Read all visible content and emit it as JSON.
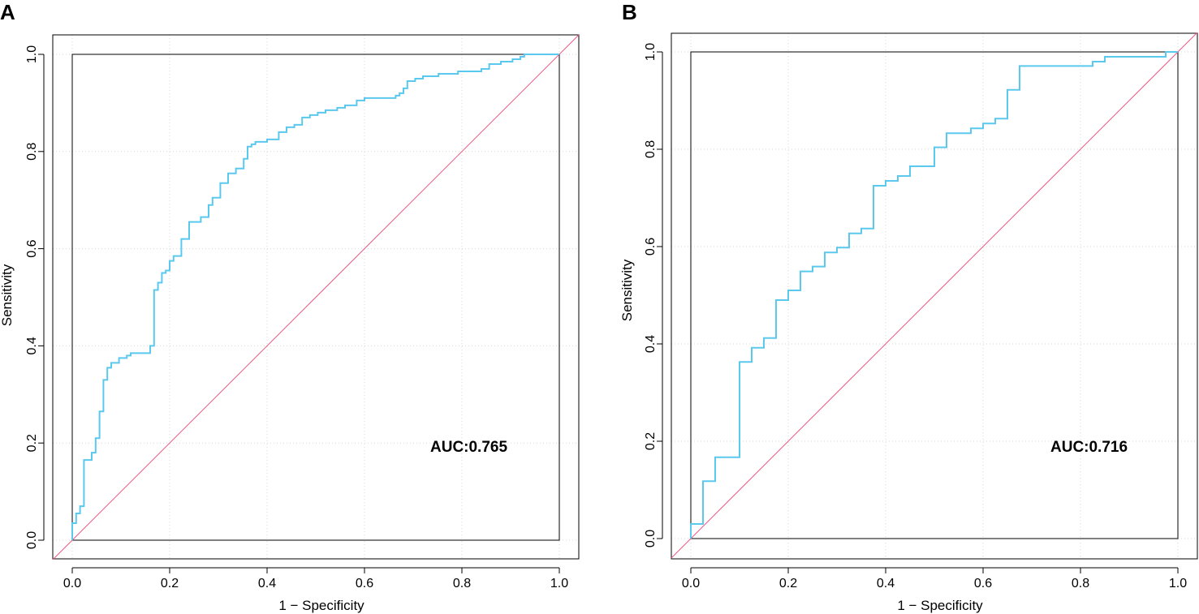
{
  "chart_data": [
    {
      "panel_label": "A",
      "type": "line",
      "xlabel": "1 − Specificity",
      "ylabel": "Sensitivity",
      "xlim": [
        0,
        1
      ],
      "ylim": [
        0,
        1
      ],
      "xticks": [
        "0.0",
        "0.2",
        "0.4",
        "0.6",
        "0.8",
        "1.0"
      ],
      "yticks": [
        "0.0",
        "0.2",
        "0.4",
        "0.6",
        "0.8",
        "1.0"
      ],
      "annotation": "AUC:0.765",
      "colors": {
        "roc": "#5bc8ee",
        "reference": "#ee5a83",
        "frame": "#000000"
      },
      "series": [
        {
          "name": "ROC",
          "points": [
            [
              0,
              0
            ],
            [
              0,
              0.035
            ],
            [
              0.008,
              0.035
            ],
            [
              0.008,
              0.055
            ],
            [
              0.016,
              0.055
            ],
            [
              0.016,
              0.07
            ],
            [
              0.024,
              0.07
            ],
            [
              0.024,
              0.165
            ],
            [
              0.04,
              0.165
            ],
            [
              0.04,
              0.18
            ],
            [
              0.048,
              0.18
            ],
            [
              0.048,
              0.21
            ],
            [
              0.056,
              0.21
            ],
            [
              0.056,
              0.265
            ],
            [
              0.064,
              0.265
            ],
            [
              0.064,
              0.33
            ],
            [
              0.072,
              0.33
            ],
            [
              0.072,
              0.355
            ],
            [
              0.08,
              0.355
            ],
            [
              0.08,
              0.365
            ],
            [
              0.096,
              0.365
            ],
            [
              0.096,
              0.375
            ],
            [
              0.112,
              0.375
            ],
            [
              0.112,
              0.38
            ],
            [
              0.12,
              0.38
            ],
            [
              0.12,
              0.385
            ],
            [
              0.16,
              0.385
            ],
            [
              0.16,
              0.4
            ],
            [
              0.168,
              0.4
            ],
            [
              0.168,
              0.515
            ],
            [
              0.176,
              0.515
            ],
            [
              0.176,
              0.53
            ],
            [
              0.184,
              0.53
            ],
            [
              0.184,
              0.55
            ],
            [
              0.192,
              0.55
            ],
            [
              0.192,
              0.555
            ],
            [
              0.2,
              0.555
            ],
            [
              0.2,
              0.575
            ],
            [
              0.208,
              0.575
            ],
            [
              0.208,
              0.585
            ],
            [
              0.224,
              0.585
            ],
            [
              0.224,
              0.62
            ],
            [
              0.24,
              0.62
            ],
            [
              0.24,
              0.655
            ],
            [
              0.264,
              0.655
            ],
            [
              0.264,
              0.665
            ],
            [
              0.28,
              0.665
            ],
            [
              0.28,
              0.69
            ],
            [
              0.288,
              0.69
            ],
            [
              0.288,
              0.705
            ],
            [
              0.304,
              0.705
            ],
            [
              0.304,
              0.735
            ],
            [
              0.32,
              0.735
            ],
            [
              0.32,
              0.755
            ],
            [
              0.336,
              0.755
            ],
            [
              0.336,
              0.765
            ],
            [
              0.352,
              0.765
            ],
            [
              0.352,
              0.785
            ],
            [
              0.36,
              0.785
            ],
            [
              0.36,
              0.81
            ],
            [
              0.368,
              0.81
            ],
            [
              0.368,
              0.815
            ],
            [
              0.376,
              0.815
            ],
            [
              0.376,
              0.82
            ],
            [
              0.4,
              0.82
            ],
            [
              0.4,
              0.825
            ],
            [
              0.424,
              0.825
            ],
            [
              0.424,
              0.84
            ],
            [
              0.44,
              0.84
            ],
            [
              0.44,
              0.85
            ],
            [
              0.456,
              0.85
            ],
            [
              0.456,
              0.855
            ],
            [
              0.472,
              0.855
            ],
            [
              0.472,
              0.87
            ],
            [
              0.488,
              0.87
            ],
            [
              0.488,
              0.875
            ],
            [
              0.504,
              0.875
            ],
            [
              0.504,
              0.88
            ],
            [
              0.52,
              0.88
            ],
            [
              0.52,
              0.885
            ],
            [
              0.544,
              0.885
            ],
            [
              0.544,
              0.89
            ],
            [
              0.56,
              0.89
            ],
            [
              0.56,
              0.895
            ],
            [
              0.584,
              0.895
            ],
            [
              0.584,
              0.905
            ],
            [
              0.6,
              0.905
            ],
            [
              0.6,
              0.91
            ],
            [
              0.664,
              0.91
            ],
            [
              0.664,
              0.915
            ],
            [
              0.672,
              0.915
            ],
            [
              0.672,
              0.92
            ],
            [
              0.68,
              0.92
            ],
            [
              0.68,
              0.93
            ],
            [
              0.688,
              0.93
            ],
            [
              0.688,
              0.945
            ],
            [
              0.704,
              0.945
            ],
            [
              0.704,
              0.95
            ],
            [
              0.72,
              0.95
            ],
            [
              0.72,
              0.955
            ],
            [
              0.752,
              0.955
            ],
            [
              0.752,
              0.96
            ],
            [
              0.792,
              0.96
            ],
            [
              0.792,
              0.965
            ],
            [
              0.84,
              0.965
            ],
            [
              0.84,
              0.97
            ],
            [
              0.856,
              0.97
            ],
            [
              0.856,
              0.98
            ],
            [
              0.88,
              0.98
            ],
            [
              0.88,
              0.985
            ],
            [
              0.904,
              0.985
            ],
            [
              0.904,
              0.99
            ],
            [
              0.92,
              0.99
            ],
            [
              0.92,
              0.995
            ],
            [
              0.928,
              0.995
            ],
            [
              0.928,
              1
            ],
            [
              1,
              1
            ]
          ]
        },
        {
          "name": "Reference",
          "points": [
            [
              -0.04,
              -0.04
            ],
            [
              1.04,
              1.04
            ]
          ]
        }
      ]
    },
    {
      "panel_label": "B",
      "type": "line",
      "xlabel": "1 − Specificity",
      "ylabel": "Sensitivity",
      "xlim": [
        0,
        1
      ],
      "ylim": [
        0,
        1
      ],
      "xticks": [
        "0.0",
        "0.2",
        "0.4",
        "0.6",
        "0.8",
        "1.0"
      ],
      "yticks": [
        "0.0",
        "0.2",
        "0.4",
        "0.6",
        "0.8",
        "1.0"
      ],
      "annotation": "AUC:0.716",
      "colors": {
        "roc": "#5bc8ee",
        "reference": "#ee5a83",
        "frame": "#000000"
      },
      "series": [
        {
          "name": "ROC",
          "points": [
            [
              0,
              0
            ],
            [
              0,
              0.03
            ],
            [
              0.025,
              0.03
            ],
            [
              0.025,
              0.118
            ],
            [
              0.05,
              0.118
            ],
            [
              0.05,
              0.167
            ],
            [
              0.1,
              0.167
            ],
            [
              0.1,
              0.363
            ],
            [
              0.125,
              0.363
            ],
            [
              0.125,
              0.392
            ],
            [
              0.15,
              0.392
            ],
            [
              0.15,
              0.412
            ],
            [
              0.175,
              0.412
            ],
            [
              0.175,
              0.49
            ],
            [
              0.2,
              0.49
            ],
            [
              0.2,
              0.51
            ],
            [
              0.225,
              0.51
            ],
            [
              0.225,
              0.549
            ],
            [
              0.25,
              0.549
            ],
            [
              0.25,
              0.559
            ],
            [
              0.275,
              0.559
            ],
            [
              0.275,
              0.588
            ],
            [
              0.3,
              0.588
            ],
            [
              0.3,
              0.598
            ],
            [
              0.325,
              0.598
            ],
            [
              0.325,
              0.627
            ],
            [
              0.35,
              0.627
            ],
            [
              0.35,
              0.637
            ],
            [
              0.375,
              0.637
            ],
            [
              0.375,
              0.725
            ],
            [
              0.4,
              0.725
            ],
            [
              0.4,
              0.735
            ],
            [
              0.425,
              0.735
            ],
            [
              0.425,
              0.745
            ],
            [
              0.45,
              0.745
            ],
            [
              0.45,
              0.765
            ],
            [
              0.5,
              0.765
            ],
            [
              0.5,
              0.804
            ],
            [
              0.525,
              0.804
            ],
            [
              0.525,
              0.833
            ],
            [
              0.575,
              0.833
            ],
            [
              0.575,
              0.843
            ],
            [
              0.6,
              0.843
            ],
            [
              0.6,
              0.853
            ],
            [
              0.625,
              0.853
            ],
            [
              0.625,
              0.863
            ],
            [
              0.65,
              0.863
            ],
            [
              0.65,
              0.922
            ],
            [
              0.675,
              0.922
            ],
            [
              0.675,
              0.971
            ],
            [
              0.825,
              0.971
            ],
            [
              0.825,
              0.98
            ],
            [
              0.85,
              0.98
            ],
            [
              0.85,
              0.99
            ],
            [
              0.975,
              0.99
            ],
            [
              0.975,
              1
            ],
            [
              1,
              1
            ]
          ]
        },
        {
          "name": "Reference",
          "points": [
            [
              -0.04,
              -0.04
            ],
            [
              1.04,
              1.04
            ]
          ]
        }
      ]
    }
  ]
}
